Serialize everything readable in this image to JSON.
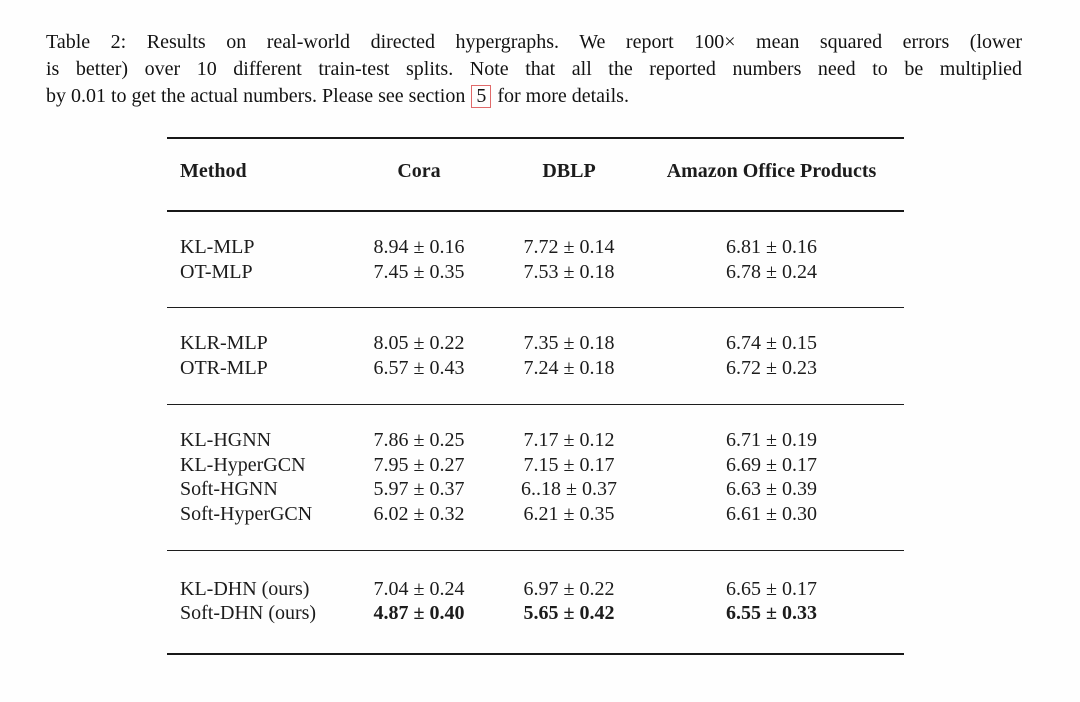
{
  "caption": {
    "lines": [
      "Table 2:  Results on real-world directed hypergraphs. We report 100× mean squared errors (lower",
      "is better) over 10 different train-test splits. Note that all the reported numbers need to be multiplied"
    ],
    "line3_before": "by 0.01 to get the actual numbers. Please see section ",
    "section_ref": "5",
    "line3_after": " for more details.",
    "ref_box_color": "#e06a6a"
  },
  "table": {
    "columns": [
      "Method",
      "Cora",
      "DBLP",
      "Amazon Office Products"
    ],
    "rule_color": "#181818",
    "groups": [
      {
        "rows": [
          {
            "method": "KL-MLP",
            "values": [
              "8.94 ± 0.16",
              "7.72 ± 0.14",
              "6.81 ± 0.16"
            ],
            "bold_values": false
          },
          {
            "method": "OT-MLP",
            "values": [
              "7.45 ± 0.35",
              "7.53 ± 0.18",
              "6.78 ± 0.24"
            ],
            "bold_values": false
          }
        ]
      },
      {
        "rows": [
          {
            "method": "KLR-MLP",
            "values": [
              "8.05 ± 0.22",
              "7.35 ± 0.18",
              "6.74 ± 0.15"
            ],
            "bold_values": false
          },
          {
            "method": "OTR-MLP",
            "values": [
              "6.57 ± 0.43",
              "7.24 ± 0.18",
              "6.72 ± 0.23"
            ],
            "bold_values": false
          }
        ]
      },
      {
        "rows": [
          {
            "method": "KL-HGNN",
            "values": [
              "7.86 ± 0.25",
              "7.17 ± 0.12",
              "6.71 ± 0.19"
            ],
            "bold_values": false
          },
          {
            "method": "KL-HyperGCN",
            "values": [
              "7.95 ± 0.27",
              "7.15 ± 0.17",
              "6.69 ± 0.17"
            ],
            "bold_values": false
          },
          {
            "method": "Soft-HGNN",
            "values": [
              "5.97 ± 0.37",
              "6..18 ± 0.37",
              "6.63 ± 0.39"
            ],
            "bold_values": false
          },
          {
            "method": "Soft-HyperGCN",
            "values": [
              "6.02 ± 0.32",
              "6.21 ± 0.35",
              "6.61 ± 0.30"
            ],
            "bold_values": false
          }
        ]
      },
      {
        "rows": [
          {
            "method": "KL-DHN (ours)",
            "values": [
              "7.04 ± 0.24",
              "6.97 ± 0.22",
              "6.65 ± 0.17"
            ],
            "bold_values": false
          },
          {
            "method": "Soft-DHN (ours)",
            "values": [
              "4.87 ± 0.40",
              "5.65 ± 0.42",
              "6.55 ± 0.33"
            ],
            "bold_values": true
          }
        ]
      }
    ]
  }
}
